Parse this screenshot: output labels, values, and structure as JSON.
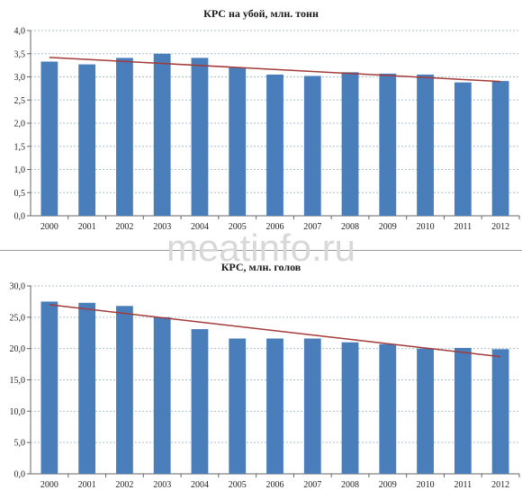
{
  "watermark": "meatinfo.ru",
  "chart_data": [
    {
      "type": "bar",
      "title": "КРС на убой, млн. тонн",
      "categories": [
        "2000",
        "2001",
        "2002",
        "2003",
        "2004",
        "2005",
        "2006",
        "2007",
        "2008",
        "2009",
        "2010",
        "2011",
        "2012"
      ],
      "values": [
        3.33,
        3.27,
        3.41,
        3.5,
        3.41,
        3.2,
        3.05,
        3.02,
        3.1,
        3.07,
        3.05,
        2.88,
        2.91
      ],
      "trendline": [
        3.42,
        2.9
      ],
      "ylim": [
        0,
        4.0
      ],
      "yticks": [
        "0,0",
        "0,5",
        "1,0",
        "1,5",
        "2,0",
        "2,5",
        "3,0",
        "3,5",
        "4,0"
      ],
      "grid": true,
      "colors": {
        "bar": "#4a7ebb",
        "trend": "#a33b3b",
        "grid": "#a8c2cf"
      }
    },
    {
      "type": "bar",
      "title": "КРС, млн. голов",
      "categories": [
        "2000",
        "2001",
        "2002",
        "2003",
        "2004",
        "2005",
        "2006",
        "2007",
        "2008",
        "2009",
        "2010",
        "2011",
        "2012"
      ],
      "values": [
        27.5,
        27.3,
        26.8,
        25.0,
        23.1,
        21.6,
        21.6,
        21.6,
        21.0,
        20.7,
        20.0,
        20.1,
        19.9
      ],
      "trendline": [
        27.0,
        18.7
      ],
      "ylim": [
        0,
        30.0
      ],
      "yticks": [
        "0,0",
        "5,0",
        "10,0",
        "15,0",
        "20,0",
        "25,0",
        "30,0"
      ],
      "grid": true,
      "colors": {
        "bar": "#4a7ebb",
        "trend": "#a33b3b",
        "grid": "#a8c2cf"
      }
    }
  ]
}
